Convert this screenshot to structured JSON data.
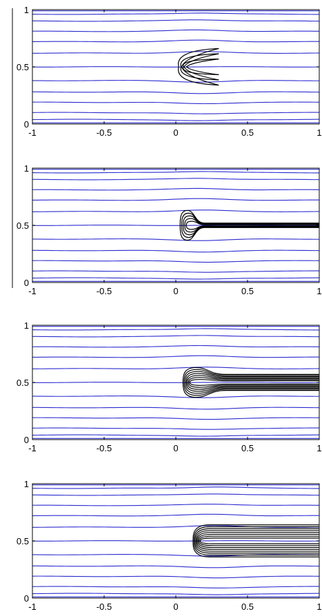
{
  "chart_data": [
    {
      "type": "contour",
      "panel": 1,
      "xlim": [
        -1,
        1
      ],
      "ylim": [
        0,
        1
      ],
      "xticks": [
        -1,
        -0.5,
        0,
        0.5,
        1
      ],
      "xtick_labels": [
        "-1",
        "-0.5",
        "0",
        "0.5",
        "1"
      ],
      "yticks": [
        0,
        0.5,
        1
      ],
      "ytick_labels": [
        "0",
        "0.5",
        "1"
      ],
      "streamlines_y": [
        0.04,
        0.1,
        0.19,
        0.28,
        0.38,
        0.5,
        0.62,
        0.72,
        0.81,
        0.9,
        0.96
      ],
      "contour_front_x": 0.02,
      "contour_tail_x": 0.3,
      "contour_half_width": 0.16,
      "contour_levels": 3,
      "wake": false
    },
    {
      "type": "contour",
      "panel": 2,
      "xlim": [
        -1,
        1
      ],
      "ylim": [
        0,
        1
      ],
      "xticks": [
        -1,
        -0.5,
        0,
        0.5,
        1
      ],
      "xtick_labels": [
        "-1",
        "-0.5",
        "0",
        "0.5",
        "1"
      ],
      "yticks": [
        0,
        0.5,
        1
      ],
      "ytick_labels": [
        "0",
        "0.5",
        "1"
      ],
      "streamlines_y": [
        0.04,
        0.1,
        0.19,
        0.28,
        0.38,
        0.5,
        0.62,
        0.72,
        0.81,
        0.9,
        0.96
      ],
      "contour_front_x": 0.03,
      "contour_tail_x": 0.2,
      "contour_half_width": 0.13,
      "contour_levels": 5,
      "wake": true,
      "wake_half_width": 0.02
    },
    {
      "type": "contour",
      "panel": 3,
      "xlim": [
        -1,
        1
      ],
      "ylim": [
        0,
        1
      ],
      "xticks": [
        -1,
        -0.5,
        0,
        0.5,
        1
      ],
      "xtick_labels": [
        "-1",
        "-0.5",
        "0",
        "0.5",
        "1"
      ],
      "yticks": [
        0,
        0.5,
        1
      ],
      "ytick_labels": [
        "0",
        "0.5",
        "1"
      ],
      "streamlines_y": [
        0.04,
        0.1,
        0.19,
        0.28,
        0.38,
        0.5,
        0.62,
        0.72,
        0.81,
        0.9,
        0.96
      ],
      "contour_front_x": 0.05,
      "contour_tail_x": 0.35,
      "contour_half_width": 0.13,
      "contour_levels": 7,
      "wake": true,
      "wake_half_width": 0.07
    },
    {
      "type": "contour",
      "panel": 4,
      "xlim": [
        -1,
        1
      ],
      "ylim": [
        0,
        1
      ],
      "xticks": [
        -1,
        -0.5,
        0,
        0.5,
        1
      ],
      "xtick_labels": [
        "-1",
        "-0.5",
        "0",
        "0.5",
        "1"
      ],
      "yticks": [
        0,
        0.5,
        1
      ],
      "ytick_labels": [
        "0",
        "0.5",
        "1"
      ],
      "streamlines_y": [
        0.04,
        0.1,
        0.19,
        0.28,
        0.38,
        0.5,
        0.62,
        0.72,
        0.81,
        0.9,
        0.96
      ],
      "contour_front_x": 0.12,
      "contour_tail_x": 0.5,
      "contour_half_width": 0.14,
      "contour_levels": 8,
      "wake": true,
      "wake_half_width": 0.14
    }
  ],
  "colors": {
    "streamline": "#2b2bd0",
    "contour": "#000000",
    "axes": "#000000",
    "background": "#ffffff"
  }
}
